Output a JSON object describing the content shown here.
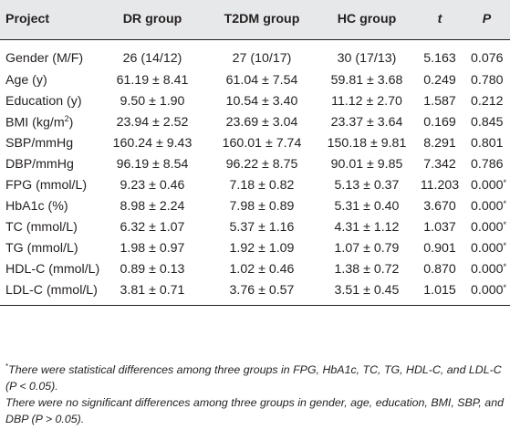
{
  "table": {
    "headers": [
      "Project",
      "DR group",
      "T2DM group",
      "HC group",
      "t",
      "P"
    ],
    "rows": [
      {
        "project": "Gender (M/F)",
        "dr": "26 (14/12)",
        "t2dm": "27 (10/17)",
        "hc": "30 (17/13)",
        "t": "5.163",
        "p": "0.076",
        "star": ""
      },
      {
        "project": "Age (y)",
        "dr": "61.19 ± 8.41",
        "t2dm": "61.04 ± 7.54",
        "hc": "59.81 ± 3.68",
        "t": "0.249",
        "p": "0.780",
        "star": ""
      },
      {
        "project": "Education (y)",
        "dr": "9.50 ± 1.90",
        "t2dm": "10.54 ± 3.40",
        "hc": "11.12 ± 2.70",
        "t": "1.587",
        "p": "0.212",
        "star": ""
      },
      {
        "project": "BMI (kg/m",
        "project_sup": "2",
        "project_suffix": ")",
        "dr": "23.94 ± 2.52",
        "t2dm": "23.69 ± 3.04",
        "hc": "23.37 ± 3.64",
        "t": "0.169",
        "p": "0.845",
        "star": ""
      },
      {
        "project": "SBP/mmHg",
        "dr": "160.24 ± 9.43",
        "t2dm": "160.01 ± 7.74",
        "hc": "150.18 ± 9.81",
        "t": "8.291",
        "p": "0.801",
        "star": ""
      },
      {
        "project": "DBP/mmHg",
        "dr": "96.19 ± 8.54",
        "t2dm": "96.22 ± 8.75",
        "hc": "90.01 ± 9.85",
        "t": "7.342",
        "p": "0.786",
        "star": ""
      },
      {
        "project": "FPG (mmol/L)",
        "dr": "9.23 ± 0.46",
        "t2dm": "7.18 ± 0.82",
        "hc": "5.13 ± 0.37",
        "t": "11.203",
        "p": "0.000",
        "star": "*"
      },
      {
        "project": "HbA1c (%)",
        "dr": "8.98 ± 2.24",
        "t2dm": "7.98 ± 0.89",
        "hc": "5.31 ± 0.40",
        "t": "3.670",
        "p": "0.000",
        "star": "*"
      },
      {
        "project": "TC (mmol/L)",
        "dr": "6.32 ± 1.07",
        "t2dm": "5.37 ± 1.16",
        "hc": "4.31 ± 1.12",
        "t": "1.037",
        "p": "0.000",
        "star": "*"
      },
      {
        "project": "TG (mmol/L)",
        "dr": "1.98 ± 0.97",
        "t2dm": "1.92 ± 1.09",
        "hc": "1.07 ± 0.79",
        "t": "0.901",
        "p": "0.000",
        "star": "*"
      },
      {
        "project": "HDL-C (mmol/L)",
        "dr": "0.89 ± 0.13",
        "t2dm": "1.02 ± 0.46",
        "hc": "1.38 ± 0.72",
        "t": "0.870",
        "p": "0.000",
        "star": "*"
      },
      {
        "project": "LDL-C (mmol/L)",
        "dr": "3.81 ± 0.71",
        "t2dm": "3.76 ± 0.57",
        "hc": "3.51 ± 0.45",
        "t": "1.015",
        "p": "0.000",
        "star": "*"
      }
    ]
  },
  "footnotes": {
    "marker": "*",
    "note1": "There were statistical differences among three groups in FPG, HbA1c, TC, TG, HDL-C, and LDL-C (P < 0.05).",
    "note2": "There were no significant differences among three groups in gender, age, education, BMI, SBP, and DBP (P > 0.05)."
  },
  "colors": {
    "header_bg": "#e7e8ea",
    "text": "#231f20"
  }
}
